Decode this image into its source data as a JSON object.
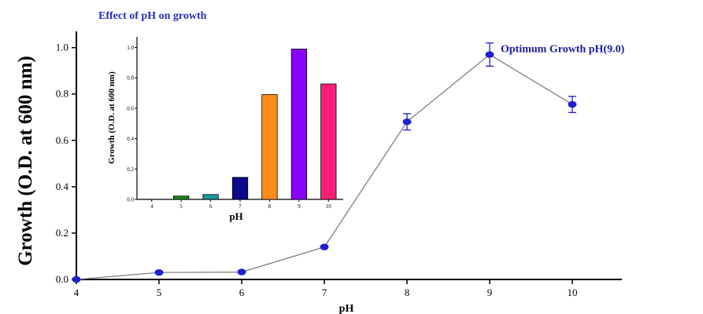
{
  "chart_data": [
    {
      "type": "line",
      "title": "Effect of pH on growth",
      "xlabel": "pH",
      "ylabel": "Growth (O.D. at 600 nm)",
      "x_ticks": [
        "4",
        "5",
        "6",
        "7",
        "8",
        "9",
        "10"
      ],
      "y_ticks": [
        "0.0",
        "0.2",
        "0.4",
        "0.6",
        "0.8",
        "1.0"
      ],
      "xlim": [
        4,
        10.6
      ],
      "ylim": [
        0,
        1.07
      ],
      "grid": false,
      "series": [
        {
          "x": [
            4,
            5,
            6,
            7,
            8,
            9,
            10
          ],
          "y": [
            0.0,
            0.03,
            0.032,
            0.14,
            0.68,
            0.97,
            0.755
          ],
          "error": [
            0,
            0,
            0,
            0,
            0.035,
            0.05,
            0.035
          ],
          "color": "#1f1fd0",
          "line_color": "#808080"
        }
      ],
      "annotations": [
        {
          "text": "Optimum Growth pH(9.0)",
          "x": 9,
          "y": 0.97
        }
      ],
      "colors": {
        "title": "#2b2bb8",
        "annotation": "#1a1aa0"
      }
    },
    {
      "type": "bar",
      "xlabel": "pH",
      "ylabel": "Growth (O.D. at 600 nm)",
      "categories": [
        "4",
        "5",
        "6",
        "7",
        "8",
        "9",
        "10"
      ],
      "values": [
        0.0,
        0.022,
        0.032,
        0.145,
        0.69,
        0.99,
        0.76
      ],
      "y_ticks": [
        "0.0",
        "0.2",
        "0.4",
        "0.6",
        "0.8",
        "1.0"
      ],
      "ylim": [
        0,
        1.07
      ],
      "bar_colors": [
        "#c0c0c0",
        "#1a8a1a",
        "#1a9a9a",
        "#0a0a8a",
        "#ff8c1a",
        "#8a00ff",
        "#ff1f7a"
      ]
    }
  ]
}
